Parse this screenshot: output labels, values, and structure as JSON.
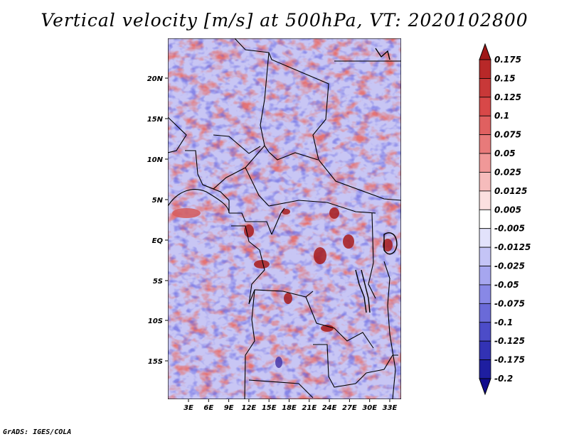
{
  "title": "Vertical velocity [m/s] at 500hPa, VT: 2020102800",
  "map": {
    "lat_labels": [
      "20N",
      "15N",
      "10N",
      "5N",
      "EQ",
      "5S",
      "10S",
      "15S"
    ],
    "lon_labels": [
      "3E",
      "6E",
      "9E",
      "12E",
      "15E",
      "18E",
      "21E",
      "24E",
      "27E",
      "30E",
      "33E"
    ]
  },
  "colorbar": {
    "labels": [
      "0.175",
      "0.15",
      "0.125",
      "0.1",
      "0.075",
      "0.05",
      "0.025",
      "0.0125",
      "0.005",
      "-0.005",
      "-0.0125",
      "-0.025",
      "-0.05",
      "-0.075",
      "-0.1",
      "-0.125",
      "-0.175",
      "-0.2"
    ],
    "colors": [
      "#a01818",
      "#b82828",
      "#c83838",
      "#d84848",
      "#e06060",
      "#e87a7a",
      "#f09898",
      "#f6bcbc",
      "#fbe0e0",
      "#ffffff",
      "#e2e2fb",
      "#c4c4f6",
      "#a6a6ef",
      "#8888e6",
      "#6a6ad8",
      "#4c4cc8",
      "#3232b4",
      "#1e1ea0",
      "#100c8c"
    ]
  },
  "credit": "GrADS: IGES/COLA"
}
